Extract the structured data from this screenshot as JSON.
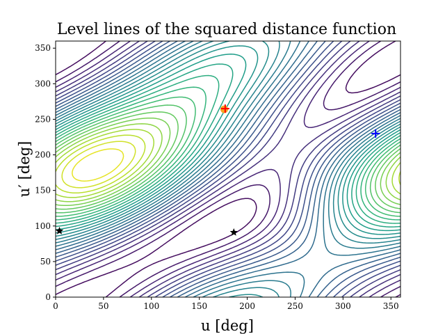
{
  "chart_data": {
    "type": "contour",
    "title": "Level lines of the squared distance function",
    "xlabel": "u [deg]",
    "ylabel": "u′ [deg]",
    "xlim": [
      0,
      360
    ],
    "ylim": [
      0,
      360
    ],
    "xticks": [
      0,
      50,
      100,
      150,
      200,
      250,
      300,
      350
    ],
    "yticks": [
      0,
      50,
      100,
      150,
      200,
      250,
      300,
      350
    ],
    "colormap": "viridis",
    "grid": false,
    "levels": 28,
    "maximum": {
      "x": 176,
      "y": 265
    },
    "minima": [
      {
        "x": 335,
        "y": 230
      },
      {
        "x": 223,
        "y": 0
      },
      {
        "x": 55,
        "y": 5
      }
    ],
    "markers": [
      {
        "name": "circle",
        "shape": "circle",
        "color": "#f5a623",
        "x": 176,
        "y": 264
      },
      {
        "name": "red-plus",
        "shape": "plus",
        "color": "#ff0000",
        "x": 177,
        "y": 265
      },
      {
        "name": "blue-plus",
        "shape": "plus",
        "color": "#0000ff",
        "x": 334,
        "y": 230
      },
      {
        "name": "star-left",
        "shape": "star",
        "color": "#000000",
        "x": 4,
        "y": 93
      },
      {
        "name": "star-mid",
        "shape": "star",
        "color": "#000000",
        "x": 186,
        "y": 91
      }
    ]
  }
}
